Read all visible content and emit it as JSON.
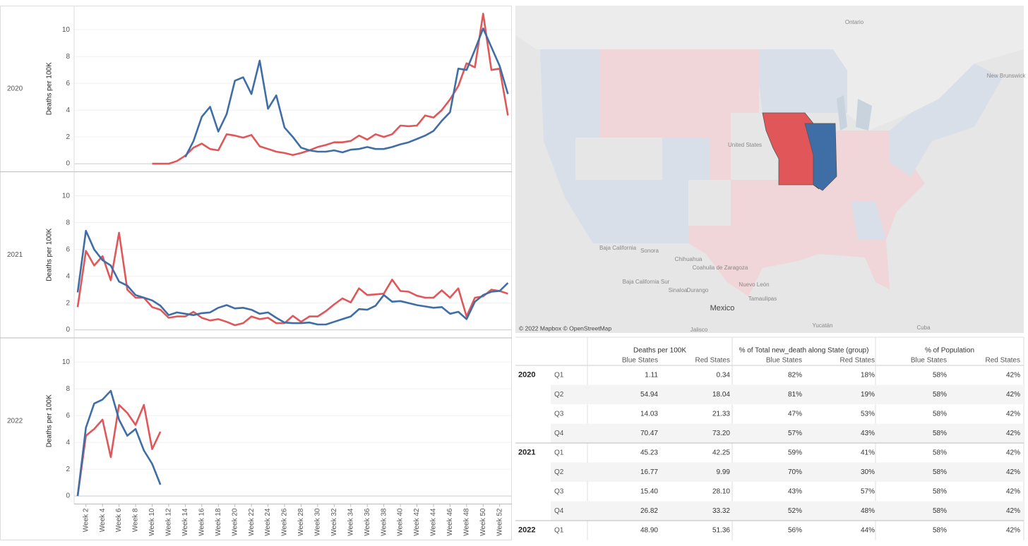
{
  "chart_data": [
    {
      "type": "line",
      "row_label": "2020",
      "y_label": "Deaths per 100K",
      "ylim": [
        -0.6,
        11.8
      ],
      "yticks": [
        0,
        2,
        4,
        6,
        8,
        10
      ],
      "grid": true,
      "series": [
        {
          "color": "#e15759",
          "values": [
            null,
            null,
            null,
            null,
            null,
            null,
            null,
            null,
            null,
            0,
            0,
            0,
            0.2,
            0.6,
            1.2,
            1.5,
            1.1,
            1.0,
            2.2,
            2.1,
            1.95,
            2.15,
            1.3,
            1.1,
            0.9,
            0.8,
            0.65,
            0.8,
            1.0,
            1.25,
            1.4,
            1.6,
            1.6,
            1.7,
            2.1,
            1.8,
            2.2,
            2.0,
            2.2,
            2.85,
            2.8,
            2.85,
            3.6,
            3.45,
            4.0,
            4.8,
            5.8,
            7.5,
            7.2,
            11.2,
            7.0,
            7.1,
            3.6
          ]
        },
        {
          "color": "#3f6ea6",
          "values": [
            null,
            null,
            null,
            null,
            null,
            null,
            null,
            null,
            null,
            null,
            null,
            null,
            null,
            0.5,
            1.7,
            3.5,
            4.25,
            2.4,
            3.7,
            6.2,
            6.45,
            5.2,
            7.7,
            4.1,
            5.1,
            2.7,
            2.0,
            1.2,
            1.0,
            0.9,
            0.9,
            1.0,
            0.85,
            1.05,
            1.1,
            1.25,
            1.1,
            1.1,
            1.25,
            1.45,
            1.6,
            1.85,
            2.1,
            2.45,
            3.2,
            3.85,
            7.1,
            7.0,
            8.5,
            10.1,
            8.7,
            7.3,
            5.2
          ]
        }
      ]
    },
    {
      "type": "line",
      "row_label": "2021",
      "y_label": "Deaths per 100K",
      "ylim": [
        -0.6,
        11.8
      ],
      "yticks": [
        0,
        2,
        4,
        6,
        8,
        10
      ],
      "grid": true,
      "series": [
        {
          "color": "#e15759",
          "values": [
            1.7,
            5.9,
            4.8,
            5.5,
            3.7,
            7.25,
            3.0,
            2.4,
            2.4,
            1.7,
            1.5,
            0.9,
            1.0,
            1.0,
            1.35,
            0.9,
            0.7,
            0.8,
            0.6,
            0.35,
            0.5,
            1.0,
            0.8,
            0.9,
            0.5,
            0.5,
            1.05,
            0.6,
            1.0,
            1.0,
            1.4,
            1.9,
            2.35,
            2.05,
            3.1,
            2.6,
            2.65,
            2.7,
            3.75,
            2.9,
            2.85,
            2.55,
            2.4,
            2.4,
            2.95,
            2.4,
            3.1,
            1.0,
            2.4,
            2.5,
            3.0,
            2.9,
            2.7
          ]
        },
        {
          "color": "#3f6ea6",
          "values": [
            2.8,
            7.4,
            6.0,
            5.2,
            4.8,
            3.6,
            3.3,
            2.6,
            2.4,
            2.2,
            1.8,
            1.1,
            1.3,
            1.2,
            1.1,
            1.25,
            1.3,
            1.65,
            1.85,
            1.6,
            1.65,
            1.5,
            1.2,
            1.3,
            0.9,
            0.55,
            0.5,
            0.5,
            0.55,
            0.4,
            0.4,
            0.6,
            0.8,
            1.0,
            1.55,
            1.5,
            1.8,
            2.6,
            2.1,
            2.15,
            2.0,
            1.85,
            1.75,
            1.65,
            1.7,
            1.2,
            1.35,
            0.8,
            2.1,
            2.6,
            2.85,
            2.9,
            3.5
          ]
        }
      ]
    },
    {
      "type": "line",
      "row_label": "2022",
      "y_label": "Deaths per 100K",
      "ylim": [
        -0.6,
        11.8
      ],
      "yticks": [
        0,
        2,
        4,
        6,
        8,
        10
      ],
      "grid": true,
      "categories": [
        null,
        "Week 2",
        null,
        "Week 4",
        null,
        "Week 6",
        null,
        "Week 8",
        null,
        "Week 10",
        null,
        "Week 12",
        null,
        "Week 14",
        null,
        "Week 16",
        null,
        "Week 18",
        null,
        "Week 20",
        null,
        "Week 22",
        null,
        "Week 24",
        null,
        "Week 26",
        null,
        "Week 28",
        null,
        "Week 30",
        null,
        "Week 32",
        null,
        "Week 34",
        null,
        "Week 36",
        null,
        "Week 38",
        null,
        "Week 40",
        null,
        "Week 42",
        null,
        "Week 44",
        null,
        "Week 46",
        null,
        "Week 48",
        null,
        "Week 50",
        null,
        "Week 52",
        null
      ],
      "series": [
        {
          "color": "#e15759",
          "values": [
            0,
            4.5,
            5.0,
            5.7,
            2.9,
            6.8,
            6.2,
            5.3,
            6.8,
            3.5,
            4.8,
            null,
            null,
            null,
            null,
            null,
            null,
            null,
            null,
            null,
            null,
            null,
            null,
            null,
            null,
            null,
            null,
            null,
            null,
            null,
            null,
            null,
            null,
            null,
            null,
            null,
            null,
            null,
            null,
            null,
            null,
            null,
            null,
            null,
            null,
            null,
            null,
            null,
            null,
            null,
            null,
            null,
            null
          ]
        },
        {
          "color": "#3f6ea6",
          "values": [
            0,
            5.1,
            6.9,
            7.2,
            7.85,
            5.7,
            4.5,
            5.0,
            3.4,
            2.4,
            0.85,
            null,
            null,
            null,
            null,
            null,
            null,
            null,
            null,
            null,
            null,
            null,
            null,
            null,
            null,
            null,
            null,
            null,
            null,
            null,
            null,
            null,
            null,
            null,
            null,
            null,
            null,
            null,
            null,
            null,
            null,
            null,
            null,
            null,
            null,
            null,
            null,
            null,
            null,
            null,
            null,
            null,
            null
          ]
        }
      ]
    }
  ],
  "map": {
    "labels": [
      "Ontario",
      "United States",
      "Baja California",
      "Sonora",
      "Chihuahua",
      "Baja California Sur",
      "Coahuila de Zaragoza",
      "Sinaloa",
      "Durango",
      "Nuevo León",
      "Tamaulipas",
      "Mexico",
      "Jalisco",
      "Yucatán",
      "Cuba",
      "New Brunswick"
    ],
    "attribution": "© 2022 Mapbox © OpenStreetMap"
  },
  "table": {
    "groups": [
      {
        "title": "Deaths per 100K",
        "sub": [
          "Blue States",
          "Red States"
        ]
      },
      {
        "title": "% of Total new_death along State (group)",
        "sub": [
          "Blue States",
          "Red States"
        ]
      },
      {
        "title": "% of Population",
        "sub": [
          "Blue States",
          "Red States"
        ]
      }
    ],
    "rows": [
      {
        "year": "2020",
        "quarter": "Q1",
        "cells": [
          "1.11",
          "0.34",
          "82%",
          "18%",
          "58%",
          "42%"
        ]
      },
      {
        "year": null,
        "quarter": "Q2",
        "cells": [
          "54.94",
          "18.04",
          "81%",
          "19%",
          "58%",
          "42%"
        ]
      },
      {
        "year": null,
        "quarter": "Q3",
        "cells": [
          "14.03",
          "21.33",
          "47%",
          "53%",
          "58%",
          "42%"
        ]
      },
      {
        "year": null,
        "quarter": "Q4",
        "cells": [
          "70.47",
          "73.20",
          "57%",
          "43%",
          "58%",
          "42%"
        ]
      },
      {
        "year": "2021",
        "quarter": "Q1",
        "cells": [
          "45.23",
          "42.25",
          "59%",
          "41%",
          "58%",
          "42%"
        ]
      },
      {
        "year": null,
        "quarter": "Q2",
        "cells": [
          "16.77",
          "9.99",
          "70%",
          "30%",
          "58%",
          "42%"
        ]
      },
      {
        "year": null,
        "quarter": "Q3",
        "cells": [
          "15.40",
          "28.10",
          "43%",
          "57%",
          "58%",
          "42%"
        ]
      },
      {
        "year": null,
        "quarter": "Q4",
        "cells": [
          "26.82",
          "33.32",
          "52%",
          "48%",
          "58%",
          "42%"
        ]
      },
      {
        "year": "2022",
        "quarter": "Q1",
        "cells": [
          "48.90",
          "51.36",
          "56%",
          "44%",
          "58%",
          "42%"
        ]
      }
    ]
  }
}
